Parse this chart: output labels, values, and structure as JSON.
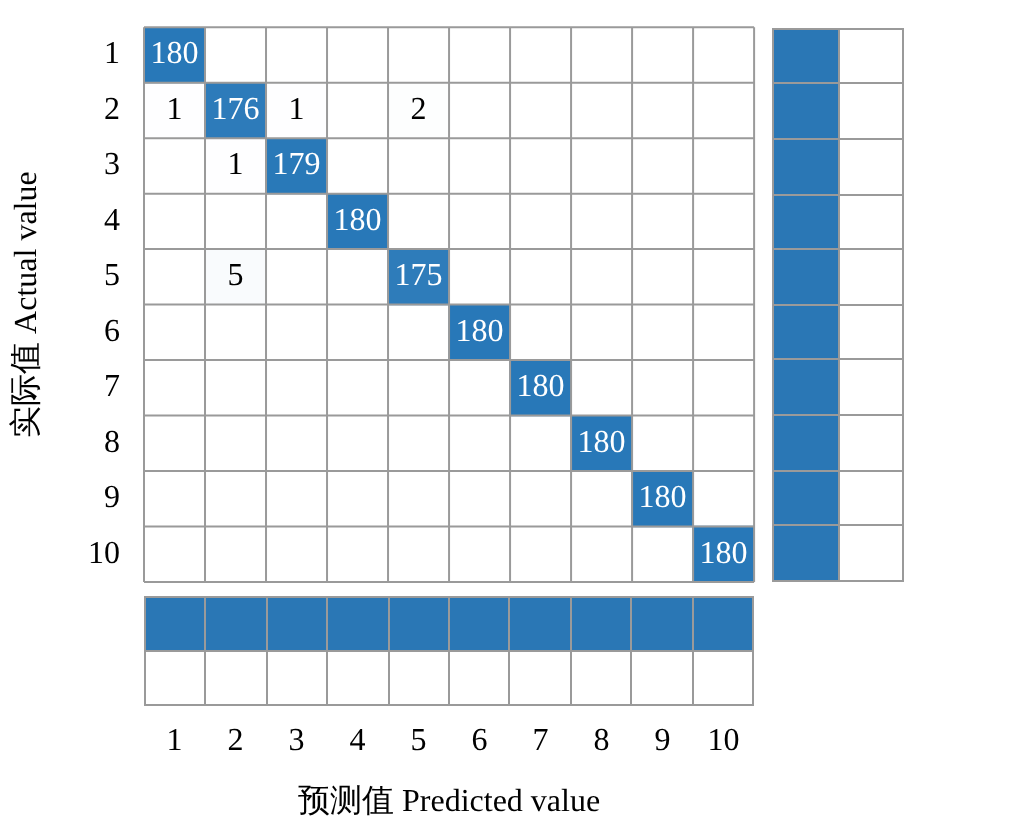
{
  "chart_data": {
    "type": "heatmap",
    "xlabel": "预测值 Predicted value",
    "ylabel": "实际值 Actual value",
    "categories": [
      "1",
      "2",
      "3",
      "4",
      "5",
      "6",
      "7",
      "8",
      "9",
      "10"
    ],
    "y_categories": [
      "1",
      "2",
      "3",
      "4",
      "5",
      "6",
      "7",
      "8",
      "9",
      "10"
    ],
    "data_labels": true,
    "cells": [
      [
        180,
        null,
        null,
        null,
        null,
        null,
        null,
        null,
        null,
        null
      ],
      [
        1,
        176,
        1,
        null,
        2,
        null,
        null,
        null,
        null,
        null
      ],
      [
        null,
        1,
        179,
        null,
        null,
        null,
        null,
        null,
        null,
        null
      ],
      [
        null,
        null,
        null,
        180,
        null,
        null,
        null,
        null,
        null,
        null
      ],
      [
        null,
        5,
        null,
        null,
        175,
        null,
        null,
        null,
        null,
        null
      ],
      [
        null,
        null,
        null,
        null,
        null,
        180,
        null,
        null,
        null,
        null
      ],
      [
        null,
        null,
        null,
        null,
        null,
        null,
        180,
        null,
        null,
        null
      ],
      [
        null,
        null,
        null,
        null,
        null,
        null,
        null,
        180,
        null,
        null
      ],
      [
        null,
        null,
        null,
        null,
        null,
        null,
        null,
        null,
        180,
        null
      ],
      [
        null,
        null,
        null,
        null,
        null,
        null,
        null,
        null,
        null,
        180
      ]
    ]
  }
}
